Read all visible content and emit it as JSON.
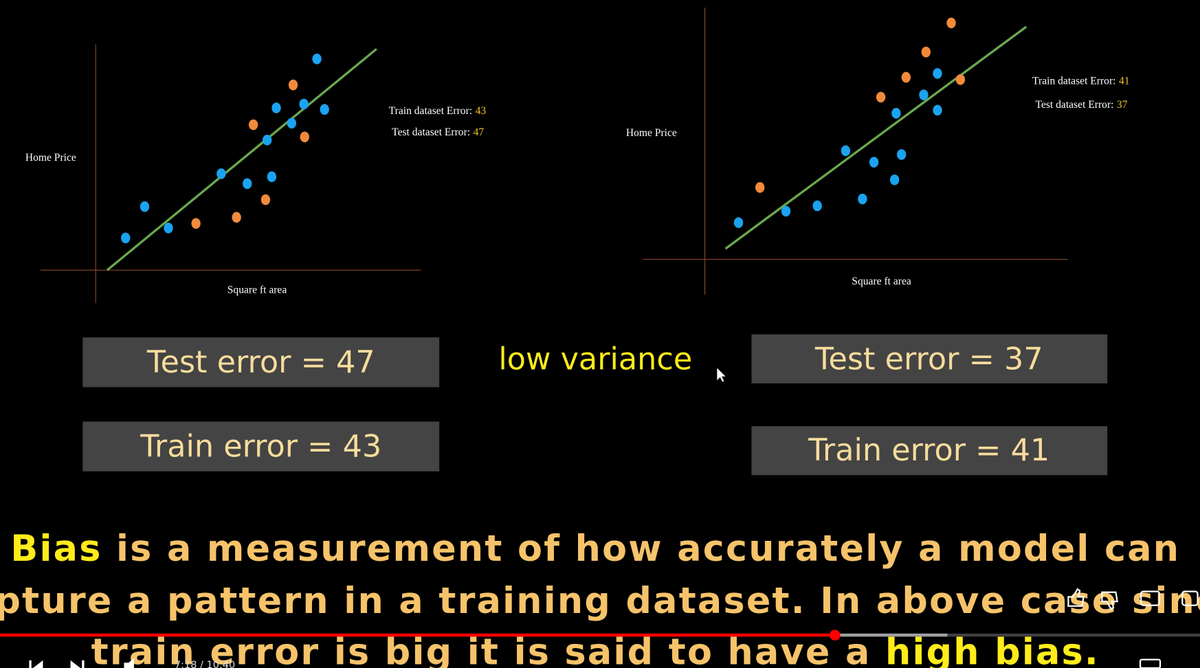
{
  "left_plot": {
    "y_label": "Home Price",
    "x_label": "Square ft area",
    "train_label": "Train dataset Error:",
    "train_value": 43,
    "test_label": "Test dataset Error:",
    "test_value": 47
  },
  "right_plot": {
    "y_label": "Home Price",
    "x_label": "Square ft area",
    "train_label": "Train dataset Error:",
    "train_value": 41,
    "test_label": "Test dataset Error:",
    "test_value": 37
  },
  "boxes": {
    "left_test": "Test error = 47",
    "left_train": "Train error = 43",
    "right_test": "Test error = 37",
    "right_train": "Train error = 41"
  },
  "note": "low variance",
  "caption": {
    "line1_highlight": "Bias",
    "line1_rest": " is a measurement of how accurately a model can",
    "line2": "capture a pattern in a training dataset. In above case since",
    "line3_rest": "train error is big it is said to have a ",
    "line3_highlight": "high bias."
  },
  "player": {
    "time": "7:18 / 10:40"
  }
}
